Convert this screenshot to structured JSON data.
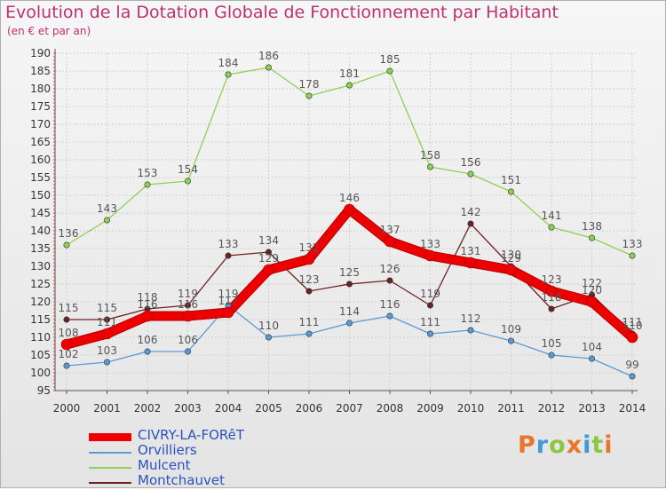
{
  "header": {
    "title": "Evolution de la Dotation Globale de Fonctionnement par Habitant",
    "subtitle": "(en € et par an)"
  },
  "logo": {
    "text": "Proxiti",
    "colors": [
      "#e8762d",
      "#3d9bd6",
      "#8dc63f",
      "#e8762d",
      "#3d9bd6",
      "#8dc63f",
      "#e8762d"
    ]
  },
  "chart_data": {
    "type": "line",
    "title": "Evolution de la Dotation Globale de Fonctionnement par Habitant",
    "subtitle": "(en € et par an)",
    "xlabel": "",
    "ylabel": "",
    "x": [
      2000,
      2001,
      2002,
      2003,
      2004,
      2005,
      2006,
      2007,
      2008,
      2009,
      2010,
      2011,
      2012,
      2013,
      2014
    ],
    "ylim": [
      95,
      190
    ],
    "yticks": [
      95,
      100,
      105,
      110,
      115,
      120,
      125,
      130,
      135,
      140,
      145,
      150,
      155,
      160,
      165,
      170,
      175,
      180,
      185,
      190
    ],
    "grid": true,
    "legend_position": "bottom-left",
    "series": [
      {
        "name": "CIVRY-LA-FORêT",
        "color": "#ee0000",
        "emphasis": true,
        "values": [
          108,
          111,
          116,
          116,
          117,
          129,
          132,
          146,
          137,
          133,
          131,
          129,
          123,
          120,
          110
        ]
      },
      {
        "name": "Orvilliers",
        "color": "#5b9bd5",
        "values": [
          102,
          103,
          106,
          106,
          119,
          110,
          111,
          114,
          116,
          111,
          112,
          109,
          105,
          104,
          99
        ]
      },
      {
        "name": "Mulcent",
        "color": "#8ed152",
        "values": [
          136,
          143,
          153,
          154,
          184,
          186,
          178,
          181,
          185,
          158,
          156,
          151,
          141,
          138,
          133
        ]
      },
      {
        "name": "Montchauvet",
        "color": "#6b2222",
        "values": [
          115,
          115,
          118,
          119,
          133,
          134,
          123,
          125,
          126,
          119,
          142,
          130,
          118,
          122,
          111
        ]
      }
    ]
  }
}
